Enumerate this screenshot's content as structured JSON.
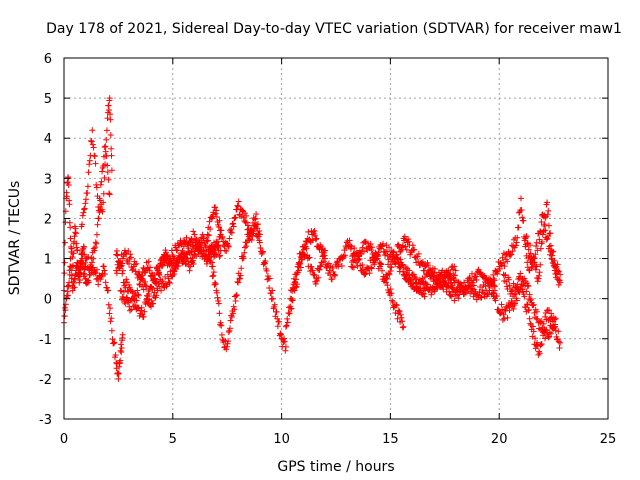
{
  "chart_data": {
    "type": "scatter",
    "title": "Day 178 of 2021, Sidereal Day-to-day VTEC variation (SDTVAR) for receiver maw1",
    "xlabel": "GPS time / hours",
    "ylabel": "SDTVAR / TECUs",
    "xlim": [
      0,
      25
    ],
    "ylim": [
      -3,
      6
    ],
    "xticks": [
      "0",
      "5",
      "10",
      "15",
      "20",
      "25"
    ],
    "yticks": [
      "-3",
      "-2",
      "-1",
      "0",
      "1",
      "2",
      "3",
      "4",
      "5",
      "6"
    ],
    "grid": true,
    "marker": "+",
    "series_color": "#ff0000",
    "series": [
      {
        "name": "SDTVAR",
        "segments": [
          {
            "x": [
              0.0,
              0.1,
              0.2,
              0.3,
              0.4,
              0.5,
              0.6,
              0.7,
              0.8,
              0.9,
              1.0
            ],
            "y": [
              0.2,
              2.5,
              3.0,
              1.5,
              0.8,
              1.8,
              1.2,
              0.6,
              0.9,
              1.3,
              0.5
            ]
          },
          {
            "x": [
              0.0,
              0.1,
              0.2,
              0.3,
              0.4,
              0.5,
              0.6,
              0.7,
              0.8,
              0.9,
              1.0
            ],
            "y": [
              -0.6,
              0.0,
              0.3,
              1.0,
              0.2,
              0.5,
              0.9,
              0.4,
              1.1,
              0.6,
              0.8
            ]
          },
          {
            "x": [
              1.0,
              1.2,
              1.4,
              1.6,
              1.8,
              2.0,
              2.1,
              2.2
            ],
            "y": [
              1.0,
              0.8,
              1.2,
              2.0,
              2.4,
              4.5,
              5.0,
              3.2
            ]
          },
          {
            "x": [
              1.0,
              1.2,
              1.4,
              1.6,
              1.8,
              2.0,
              2.2,
              2.4,
              2.5,
              2.6,
              2.7
            ],
            "y": [
              0.4,
              0.6,
              0.7,
              0.5,
              0.8,
              0.2,
              -0.8,
              -1.6,
              -2.0,
              -1.3,
              -0.9
            ]
          },
          {
            "x": [
              0.8,
              1.1,
              1.3,
              1.6,
              1.9,
              2.1
            ],
            "y": [
              1.8,
              2.8,
              4.2,
              2.2,
              3.8,
              2.6
            ]
          },
          {
            "x": [
              2.4,
              2.8,
              3.2,
              3.6,
              4.0,
              4.4,
              4.8,
              5.2,
              5.6,
              6.0,
              6.4,
              6.8,
              7.2
            ],
            "y": [
              1.1,
              0.4,
              0.0,
              -0.4,
              0.3,
              0.8,
              1.0,
              1.2,
              1.4,
              1.1,
              1.5,
              1.3,
              1.2
            ]
          },
          {
            "x": [
              2.4,
              2.8,
              3.2,
              3.6,
              4.0,
              4.4,
              4.8,
              5.2,
              5.6,
              6.0,
              6.4,
              6.8,
              7.2
            ],
            "y": [
              0.7,
              1.2,
              0.8,
              0.5,
              -0.2,
              0.3,
              0.5,
              0.9,
              1.1,
              1.6,
              1.2,
              0.9,
              1.6
            ]
          },
          {
            "x": [
              2.6,
              3.0,
              3.4,
              3.8,
              4.2,
              4.6,
              5.0,
              5.4,
              5.8,
              6.2,
              6.6,
              7.0
            ],
            "y": [
              0.2,
              -0.2,
              0.1,
              0.9,
              0.4,
              1.1,
              0.7,
              1.0,
              0.8,
              1.3,
              1.0,
              1.4
            ]
          },
          {
            "x": [
              6.6,
              6.8,
              7.0,
              7.2,
              7.4,
              7.6,
              7.8,
              8.0,
              8.2,
              8.4,
              8.6,
              8.8,
              9.0,
              9.2,
              9.4,
              9.6,
              9.8,
              10.0,
              10.2
            ],
            "y": [
              1.6,
              2.0,
              2.2,
              1.7,
              1.2,
              1.5,
              1.8,
              2.3,
              2.2,
              1.9,
              1.6,
              1.8,
              1.4,
              0.9,
              0.5,
              0.0,
              -0.5,
              -1.0,
              -1.2
            ]
          },
          {
            "x": [
              6.8,
              7.0,
              7.2,
              7.4,
              7.6,
              7.8,
              8.0,
              8.2,
              8.4,
              8.6,
              8.8,
              9.0
            ],
            "y": [
              0.8,
              0.2,
              -0.6,
              -1.2,
              -0.8,
              -0.2,
              0.4,
              1.0,
              1.4,
              1.7,
              2.0,
              1.6
            ]
          },
          {
            "x": [
              10.2,
              10.4,
              10.6,
              10.8,
              11.0,
              11.2,
              11.4,
              11.6,
              11.8,
              12.0,
              12.2,
              12.4,
              12.6,
              12.8,
              13.0
            ],
            "y": [
              -0.7,
              -0.2,
              0.2,
              0.7,
              1.1,
              1.5,
              1.6,
              1.5,
              1.3,
              1.0,
              0.7,
              0.6,
              0.8,
              1.0,
              1.4
            ]
          },
          {
            "x": [
              10.4,
              10.6,
              10.8,
              11.0,
              11.2,
              11.4,
              11.6,
              11.8,
              12.0
            ],
            "y": [
              0.0,
              0.4,
              0.9,
              1.3,
              1.0,
              0.7,
              0.5,
              0.8,
              1.2
            ]
          },
          {
            "x": [
              13.0,
              13.4,
              13.8,
              14.2,
              14.6,
              15.0,
              15.4,
              15.8,
              16.2
            ],
            "y": [
              1.4,
              1.1,
              0.6,
              0.9,
              1.3,
              1.1,
              0.9,
              0.6,
              0.3
            ]
          },
          {
            "x": [
              13.2,
              13.6,
              14.0,
              14.4,
              14.8,
              15.2,
              15.6
            ],
            "y": [
              0.8,
              1.2,
              1.3,
              1.0,
              0.4,
              -0.2,
              -0.7
            ]
          },
          {
            "x": [
              14.8,
              15.2,
              15.6,
              16.0,
              16.4,
              16.8,
              17.2,
              17.6,
              18.0
            ],
            "y": [
              0.6,
              1.0,
              1.5,
              1.2,
              0.9,
              0.7,
              0.5,
              0.6,
              0.7
            ]
          },
          {
            "x": [
              15.4,
              15.8,
              16.2,
              16.6,
              17.0,
              17.4,
              17.8,
              18.2,
              18.6,
              19.0,
              19.4,
              19.8
            ],
            "y": [
              0.8,
              0.6,
              0.4,
              0.2,
              0.3,
              0.5,
              0.4,
              0.2,
              0.3,
              0.1,
              0.2,
              0.3
            ]
          },
          {
            "x": [
              16.2,
              16.8,
              17.4,
              18.0,
              18.6,
              19.2,
              19.8
            ],
            "y": [
              0.2,
              0.6,
              0.3,
              0.1,
              0.4,
              0.6,
              0.2
            ]
          },
          {
            "x": [
              19.6,
              20.0,
              20.4,
              20.8,
              21.0,
              21.2,
              21.4,
              21.6,
              21.8,
              22.0,
              22.2,
              22.4,
              22.6,
              22.8
            ],
            "y": [
              0.4,
              0.8,
              1.1,
              1.4,
              2.5,
              1.3,
              0.7,
              1.0,
              0.5,
              1.6,
              2.4,
              1.2,
              0.8,
              0.6
            ]
          },
          {
            "x": [
              19.8,
              20.2,
              20.6,
              21.0,
              21.4,
              21.8,
              22.2,
              22.6,
              22.8
            ],
            "y": [
              0.0,
              -0.4,
              -0.2,
              0.3,
              -0.5,
              -1.4,
              -0.3,
              -0.8,
              -1.1
            ]
          },
          {
            "x": [
              20.2,
              20.6,
              21.0,
              21.4,
              21.8,
              22.2,
              22.6
            ],
            "y": [
              0.6,
              0.2,
              0.5,
              0.1,
              -0.6,
              -0.9,
              -0.5
            ]
          },
          {
            "x": [
              21.2,
              21.6,
              22.0,
              22.4,
              22.8
            ],
            "y": [
              1.5,
              0.9,
              2.1,
              1.0,
              0.4
            ]
          }
        ]
      }
    ]
  }
}
